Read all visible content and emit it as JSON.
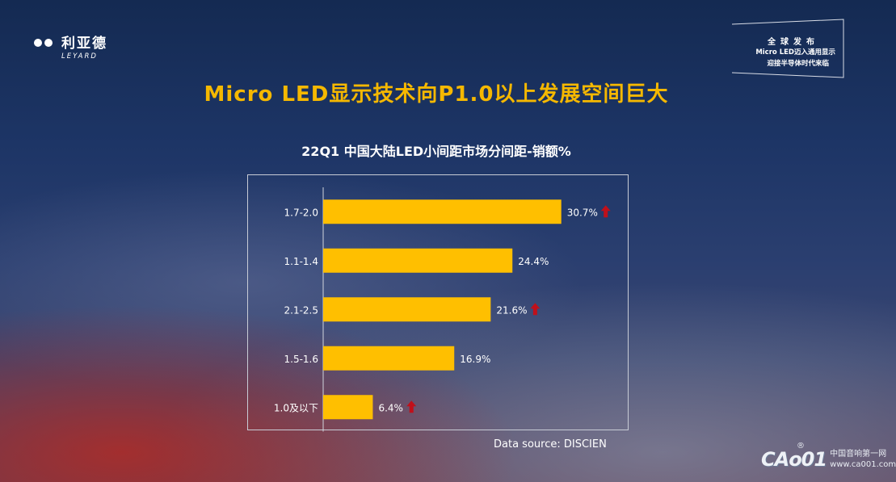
{
  "logo": {
    "name_cn": "利亚德",
    "name_en": "LEYARD"
  },
  "badge": {
    "line1": "全球发布",
    "line2": "Micro LED迈入通用显示",
    "line3": "迎接半导体时代来临"
  },
  "slide_title": "Micro LED显示技术向P1.0以上发展空间巨大",
  "chart_title": "22Q1 中国大陆LED小间距市场分间距-销额%",
  "source": "Data source: DISCIEN",
  "watermark": {
    "brand": "CAo01",
    "reg": "®",
    "cn": "中国音响第一网",
    "url": "www.ca001.com"
  },
  "colors": {
    "bar": "#ffbf00",
    "arrow": "#c0101a",
    "title": "#f5b800"
  },
  "chart_data": {
    "type": "bar",
    "orientation": "horizontal",
    "title": "22Q1 中国大陆LED小间距市场分间距-销额%",
    "xlabel": "",
    "ylabel": "",
    "xlim": [
      0,
      35
    ],
    "unit": "%",
    "categories": [
      "1.7-2.0",
      "1.1-1.4",
      "2.1-2.5",
      "1.5-1.6",
      "1.0及以下"
    ],
    "values": [
      30.7,
      24.4,
      21.6,
      16.9,
      6.4
    ],
    "labels": [
      "30.7%",
      "24.4%",
      "21.6%",
      "16.9%",
      "6.4%"
    ],
    "up_arrow": [
      true,
      false,
      true,
      false,
      true
    ]
  }
}
